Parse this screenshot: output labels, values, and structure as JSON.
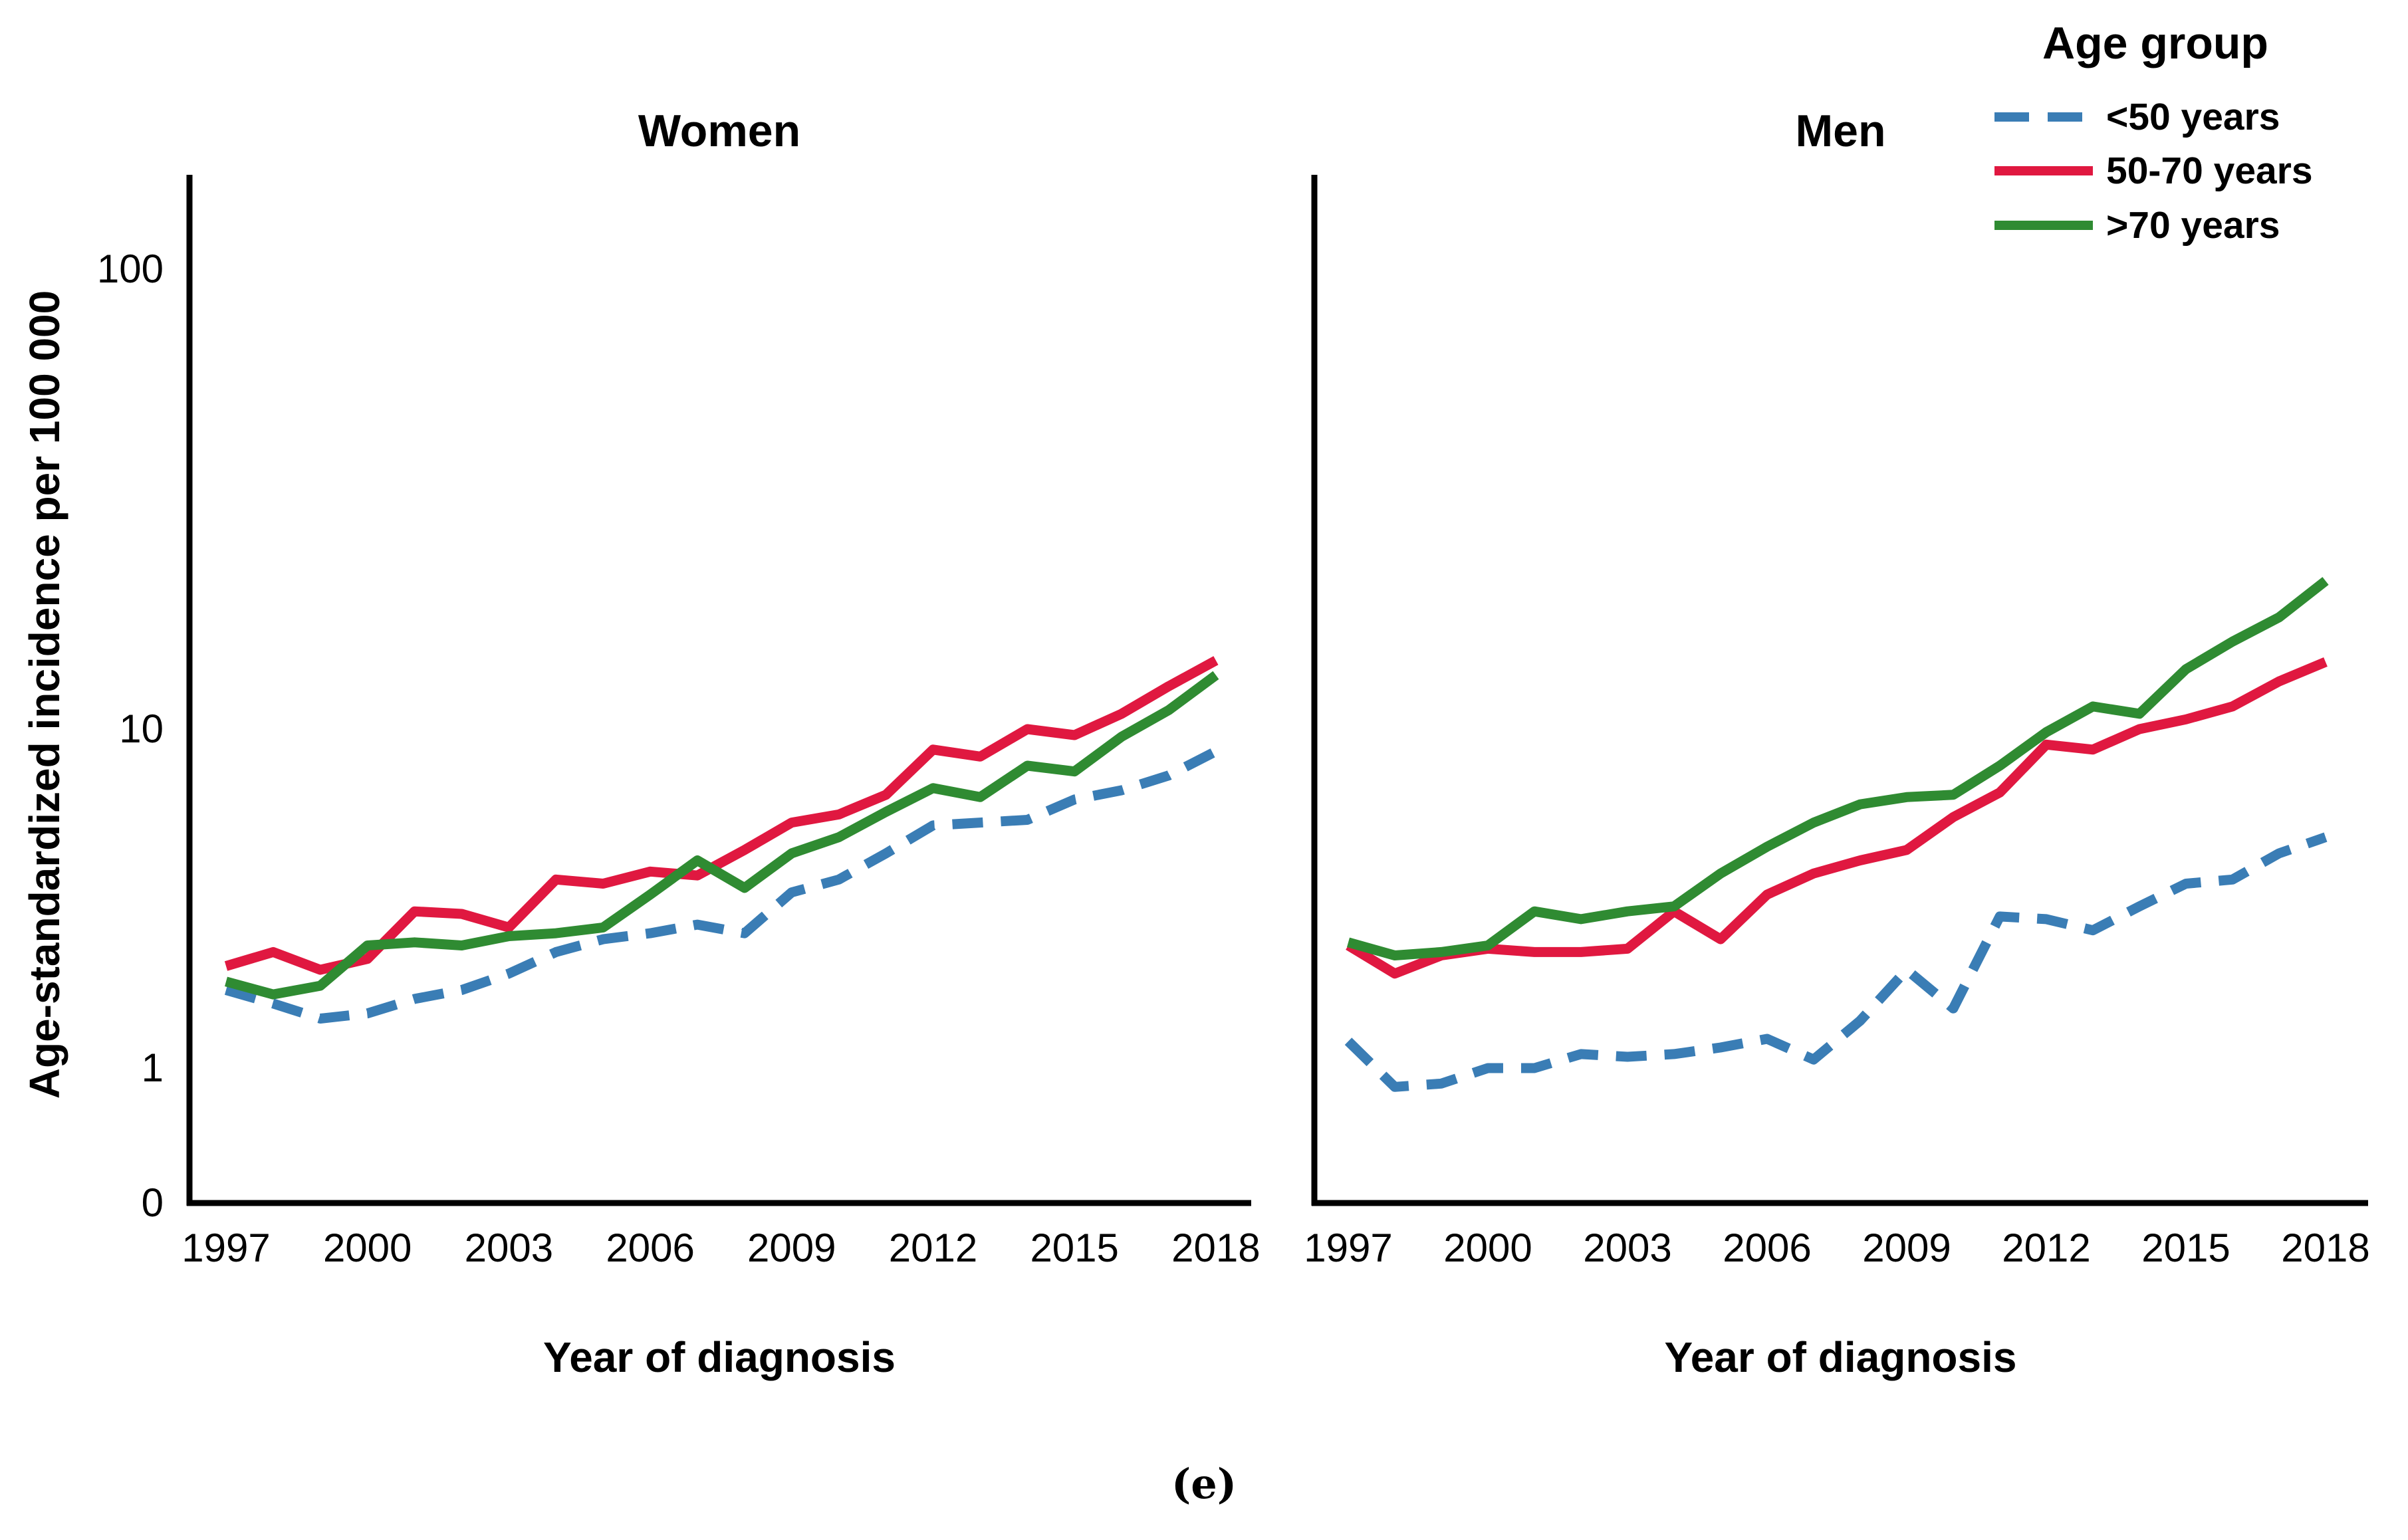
{
  "figure": {
    "y_axis_label": "Age-standardized incidence per 100 000",
    "x_axis_label": "Year of diagnosis",
    "caption": "(e)",
    "legend": {
      "title": "Age group",
      "entries": [
        {
          "label": "<50 years",
          "color": "#3A7DB5",
          "dashed": true
        },
        {
          "label": "50-70 years",
          "color": "#E01840",
          "dashed": false
        },
        {
          "label": ">70 years",
          "color": "#2F8B32",
          "dashed": false
        }
      ]
    }
  },
  "chart_data": [
    {
      "type": "line",
      "title": "Women",
      "xlabel": "Year of diagnosis",
      "ylabel": "Age-standardized incidence per 100 000",
      "yscale": "log",
      "ylim": [
        0,
        150
      ],
      "grid": false,
      "legend_position": "top-right",
      "x_ticks": [
        1997,
        2000,
        2003,
        2006,
        2009,
        2012,
        2015,
        2018
      ],
      "y_ticks": [
        0,
        1,
        10,
        100
      ],
      "x": [
        1997,
        1998,
        1999,
        2000,
        2001,
        2002,
        2003,
        2004,
        2005,
        2006,
        2007,
        2008,
        2009,
        2010,
        2011,
        2012,
        2013,
        2014,
        2015,
        2016,
        2017,
        2018
      ],
      "series": [
        {
          "name": "<50 years",
          "values": [
            1.7,
            1.55,
            1.4,
            1.45,
            1.6,
            1.7,
            1.9,
            2.2,
            2.4,
            2.5,
            2.65,
            2.5,
            3.3,
            3.6,
            4.3,
            5.2,
            5.3,
            5.4,
            6.2,
            6.6,
            7.3,
            8.6
          ]
        },
        {
          "name": "50-70 years",
          "values": [
            2.0,
            2.2,
            1.95,
            2.1,
            2.9,
            2.85,
            2.6,
            3.6,
            3.5,
            3.8,
            3.7,
            4.4,
            5.3,
            5.6,
            6.4,
            8.7,
            8.3,
            10.0,
            9.6,
            10.8,
            12.4,
            14.1
          ]
        },
        {
          "name": ">70 years",
          "values": [
            1.8,
            1.65,
            1.75,
            2.3,
            2.35,
            2.3,
            2.45,
            2.5,
            2.6,
            3.25,
            4.1,
            3.4,
            4.3,
            4.8,
            5.7,
            6.7,
            6.3,
            7.8,
            7.5,
            9.5,
            11.0,
            13.1
          ]
        }
      ]
    },
    {
      "type": "line",
      "title": "Men",
      "xlabel": "Year of diagnosis",
      "ylabel": "Age-standardized incidence per 100 000",
      "yscale": "log",
      "ylim": [
        0,
        150
      ],
      "grid": false,
      "legend_position": "top-right",
      "x_ticks": [
        1997,
        2000,
        2003,
        2006,
        2009,
        2012,
        2015,
        2018
      ],
      "y_ticks": [
        0,
        1,
        10,
        100
      ],
      "x": [
        1997,
        1998,
        1999,
        2000,
        2001,
        2002,
        2003,
        2004,
        2005,
        2006,
        2007,
        2008,
        2009,
        2010,
        2011,
        2012,
        2013,
        2014,
        2015,
        2016,
        2017,
        2018
      ],
      "series": [
        {
          "name": "<50 years",
          "values": [
            1.2,
            0.88,
            0.9,
            1.0,
            1.0,
            1.1,
            1.08,
            1.1,
            1.15,
            1.22,
            1.06,
            1.38,
            1.95,
            1.5,
            2.8,
            2.75,
            2.55,
            3.0,
            3.5,
            3.6,
            4.3,
            4.8
          ]
        },
        {
          "name": "50-70 years",
          "values": [
            2.3,
            1.9,
            2.15,
            2.25,
            2.2,
            2.2,
            2.25,
            2.9,
            2.4,
            3.25,
            3.75,
            4.1,
            4.4,
            5.5,
            6.5,
            9.0,
            8.7,
            10.0,
            10.5,
            11.2,
            12.7,
            14.0
          ]
        },
        {
          "name": ">70 years",
          "values": [
            2.35,
            2.15,
            2.2,
            2.3,
            2.9,
            2.75,
            2.9,
            3.0,
            3.75,
            4.5,
            5.3,
            6.0,
            6.3,
            6.4,
            7.8,
            9.8,
            11.2,
            10.8,
            13.5,
            15.5,
            17.5,
            21.0
          ]
        }
      ]
    }
  ]
}
